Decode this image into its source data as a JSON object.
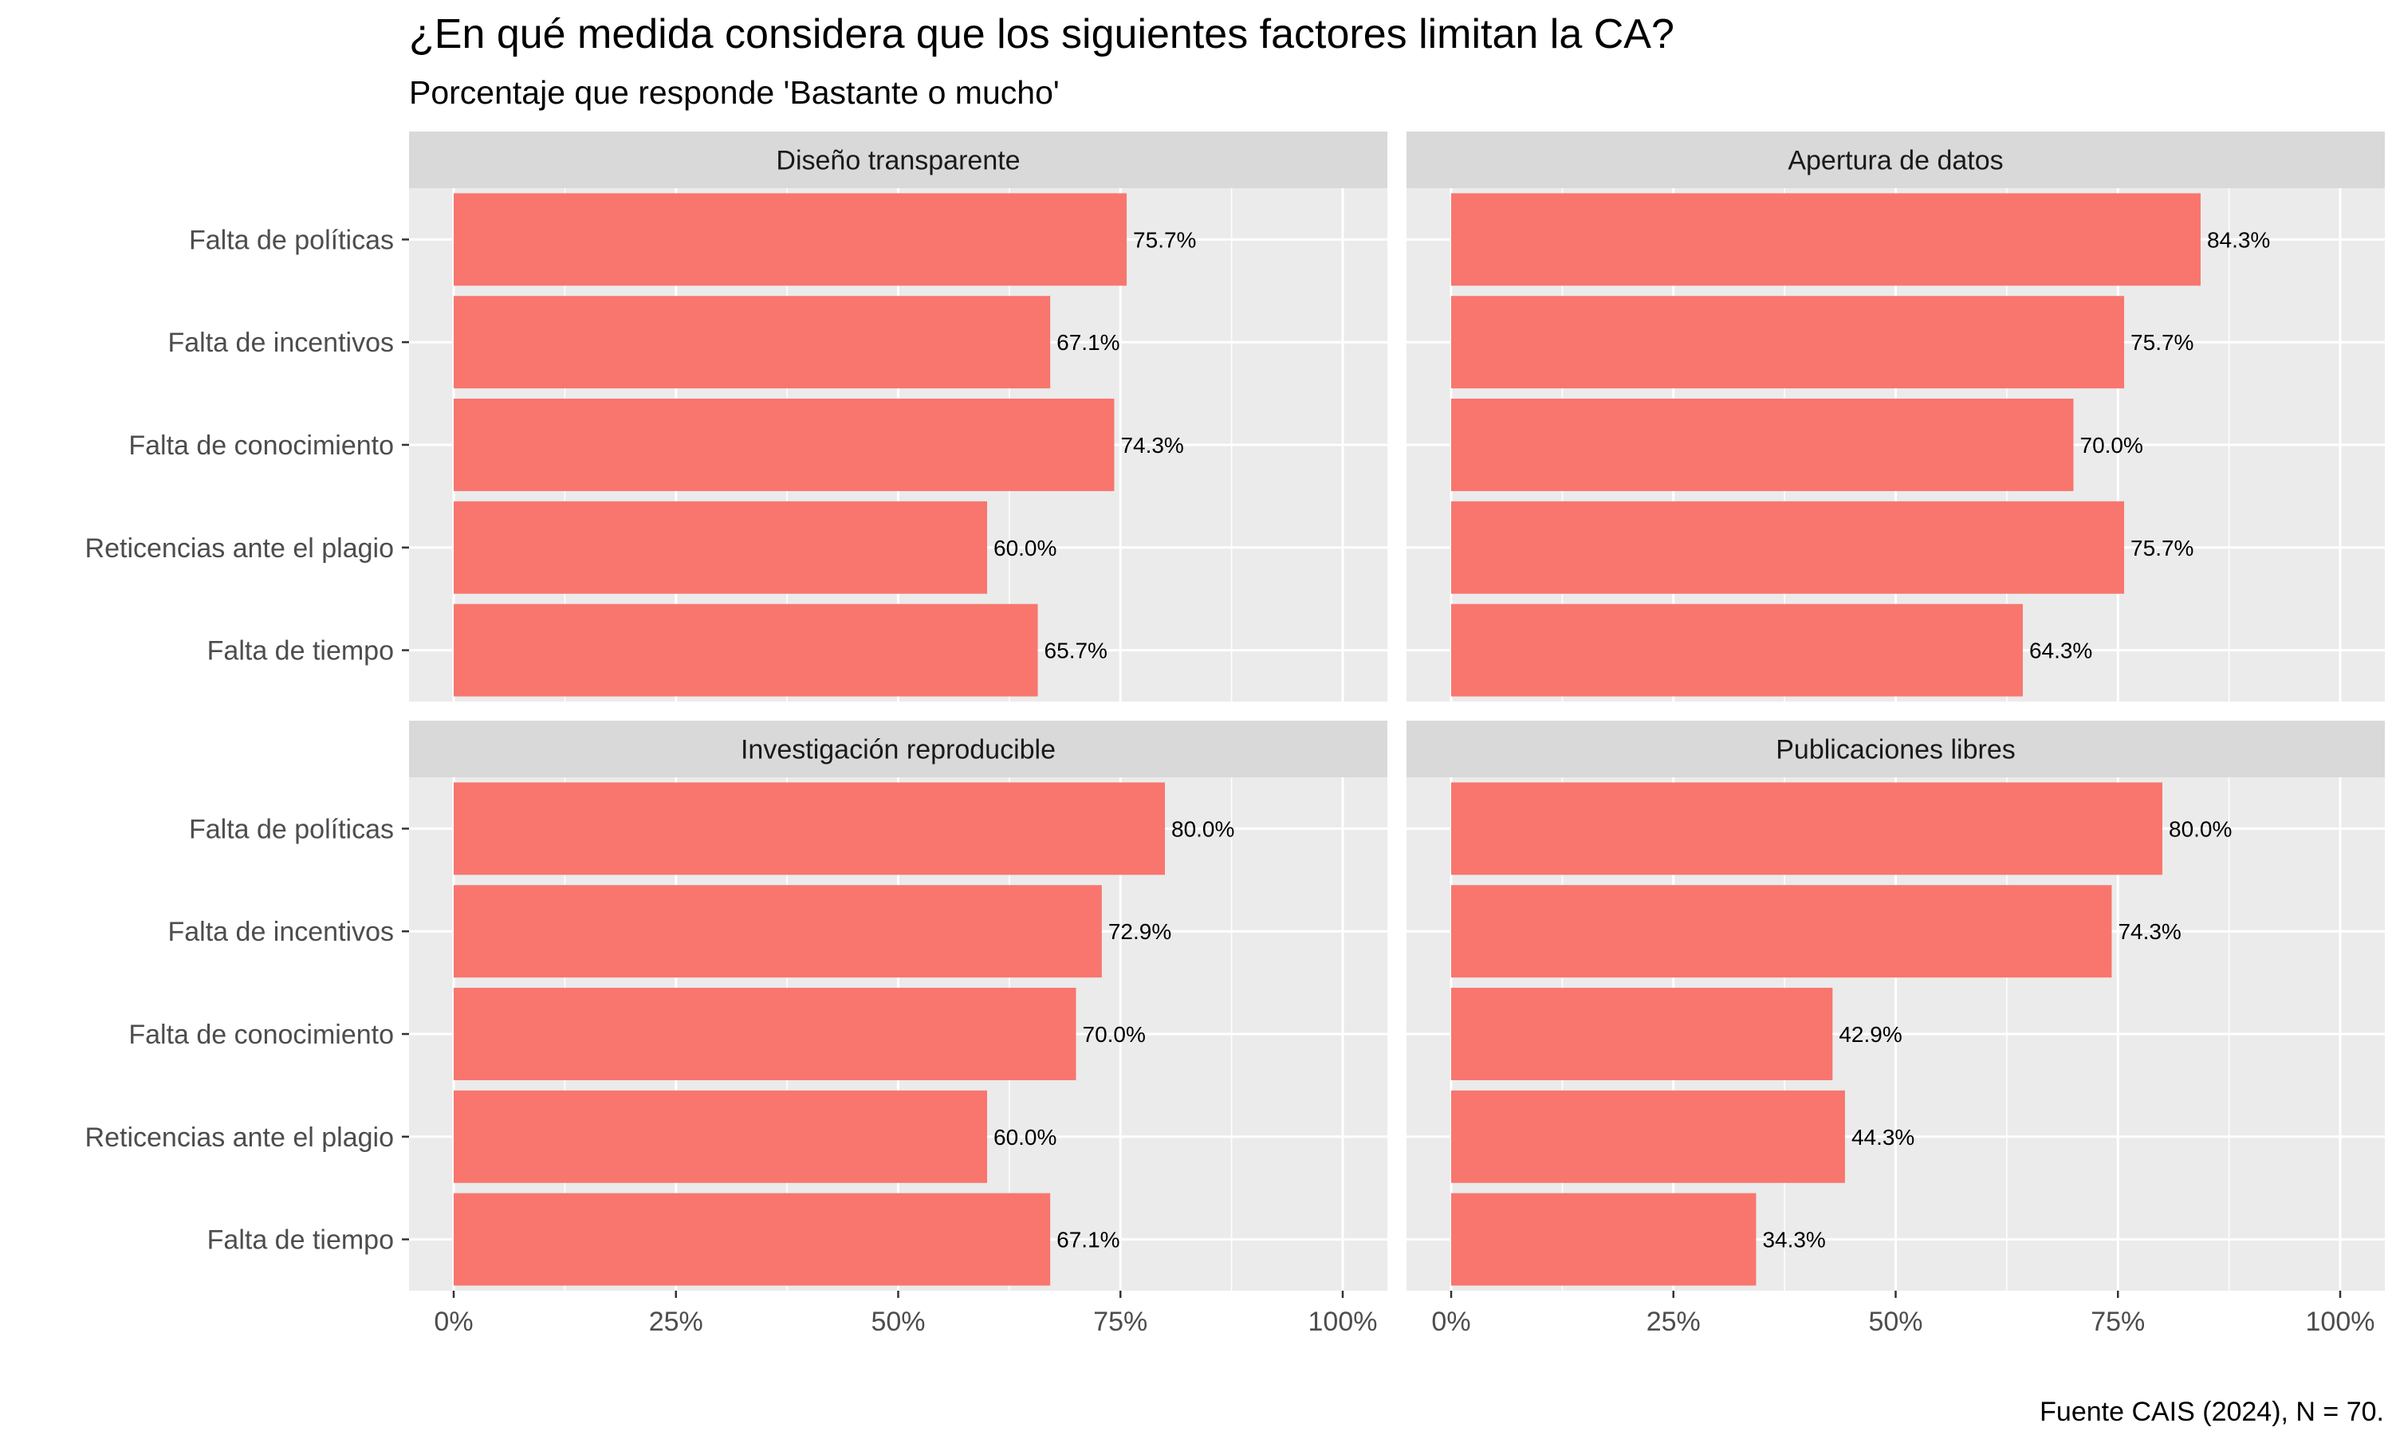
{
  "chart_data": {
    "type": "bar",
    "orientation": "horizontal",
    "title": "¿En qué medida considera que los siguientes factores limitan la CA?",
    "subtitle": "Porcentaje que responde 'Bastante o mucho'",
    "caption": "Fuente CAIS (2024), N = 70.",
    "categories": [
      "Falta de políticas",
      "Falta de incentivos",
      "Falta de conocimiento",
      "Reticencias ante el plagio",
      "Falta de tiempo"
    ],
    "xlim": [
      0,
      100
    ],
    "x_ticks": [
      0,
      25,
      50,
      75,
      100
    ],
    "x_tick_labels": [
      "0%",
      "25%",
      "50%",
      "75%",
      "100%"
    ],
    "grid": true,
    "bar_color": "#F8766D",
    "panel_background": "#EBEBEB",
    "strip_background": "#D9D9D9",
    "facets": [
      {
        "name": "Diseño transparente",
        "values": [
          75.7,
          67.1,
          74.3,
          60.0,
          65.7
        ],
        "labels": [
          "75.7%",
          "67.1%",
          "74.3%",
          "60.0%",
          "65.7%"
        ]
      },
      {
        "name": "Apertura de datos",
        "values": [
          84.3,
          75.7,
          70.0,
          75.7,
          64.3
        ],
        "labels": [
          "84.3%",
          "75.7%",
          "70.0%",
          "75.7%",
          "64.3%"
        ]
      },
      {
        "name": "Investigación reproducible",
        "values": [
          80.0,
          72.9,
          70.0,
          60.0,
          67.1
        ],
        "labels": [
          "80.0%",
          "72.9%",
          "70.0%",
          "60.0%",
          "67.1%"
        ]
      },
      {
        "name": "Publicaciones libres",
        "values": [
          80.0,
          74.3,
          42.9,
          44.3,
          34.3
        ],
        "labels": [
          "80.0%",
          "74.3%",
          "42.9%",
          "44.3%",
          "34.3%"
        ]
      }
    ]
  }
}
